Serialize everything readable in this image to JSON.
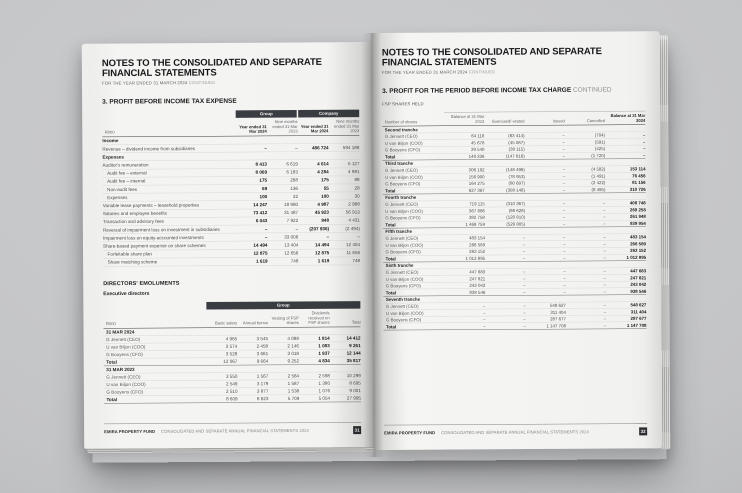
{
  "colors": {
    "band": "#393c41",
    "page_number_bg": "#2c2e31",
    "backdrop": "#c3c4c6"
  },
  "left_page": {
    "title": "NOTES TO THE CONSOLIDATED AND SEPARATE FINANCIAL STATEMENTS",
    "subtitle": "FOR THE YEAR ENDED 31 MARCH 2024 ",
    "subtitle_suffix": "CONTINUED",
    "section_title": "3. PROFIT BEFORE INCOME TAX EXPENSE",
    "main_table": {
      "unit_label": "R000",
      "groups": [
        "Group",
        "Company"
      ],
      "col_headers": [
        "Year ended 31 Mar 2024",
        "Nine months ended 31 Mar 2023",
        "Year ended 31 Mar 2024",
        "Nine months ended 31 Mar 2023"
      ],
      "rows": [
        {
          "label": "Income",
          "cls": "section",
          "values": []
        },
        {
          "label": "Revenue – dividend income from subsidiaries",
          "values": [
            "–",
            "–",
            "486 724",
            "594 188"
          ]
        },
        {
          "label": "Expenses",
          "cls": "section",
          "values": []
        },
        {
          "label": "Auditor's remuneration",
          "values": [
            "8 413",
            "6 619",
            "4 614",
            "5 127"
          ]
        },
        {
          "label": "Audit fee – external",
          "cls": "indent",
          "values": [
            "8 069",
            "6 183",
            "4 284",
            "4 981"
          ]
        },
        {
          "label": "Audit fee – internal",
          "cls": "indent",
          "values": [
            "175",
            "268",
            "175",
            "88"
          ]
        },
        {
          "label": "Non-audit fees",
          "cls": "indent",
          "values": [
            "69",
            "136",
            "55",
            "28"
          ]
        },
        {
          "label": "Expenses",
          "cls": "indent",
          "values": [
            "100",
            "32",
            "100",
            "30"
          ]
        },
        {
          "label": "Variable lease payments – leasehold properties",
          "values": [
            "14 247",
            "18 980",
            "4 987",
            "2 988"
          ]
        },
        {
          "label": "Salaries and employee benefits",
          "values": [
            "73 412",
            "31 487",
            "45 923",
            "56 913"
          ]
        },
        {
          "label": "Transaction and advisory fees",
          "values": [
            "6 043",
            "7 922",
            "848",
            "4 431"
          ]
        },
        {
          "label": "Reversal of impairment loss on investment in subsidiaries",
          "values": [
            "–",
            "–",
            "(207 936)",
            "(2 494)"
          ]
        },
        {
          "label": "Impairment loss on equity-accounted investments",
          "values": [
            "–",
            "33 006",
            "–",
            "–"
          ]
        },
        {
          "label": "Share-based payment expense on share schemes",
          "values": [
            "14 494",
            "13 404",
            "14 494",
            "12 404"
          ]
        },
        {
          "label": "Forfeitable share plan",
          "cls": "indent",
          "values": [
            "12 875",
            "12 656",
            "12 875",
            "11 656"
          ]
        },
        {
          "label": "Share matching scheme",
          "cls": "indent",
          "values": [
            "1 619",
            "748",
            "1 619",
            "748"
          ]
        }
      ]
    },
    "emoluments": {
      "title": "DIRECTORS' EMOLUMENTS",
      "subtitle": "Executive directors",
      "unit_label": "R000",
      "group_header": "Group",
      "col_headers": [
        "Basic salary",
        "Annual bonus",
        "Vesting of FSP shares",
        "Dividends received on FSP shares",
        "Total"
      ],
      "rows": [
        {
          "label": "31 MAR 2024",
          "cls": "section",
          "values": []
        },
        {
          "label": "G Jennett (CEO)",
          "cls": "name b45",
          "values": [
            "4 965",
            "3 545",
            "4 088",
            "1 814",
            "14 412"
          ]
        },
        {
          "label": "U van Biljon (COO)",
          "cls": "name b45",
          "values": [
            "3 574",
            "2 458",
            "2 146",
            "1 083",
            "9 261"
          ]
        },
        {
          "label": "G Booyens (CFO)",
          "cls": "name b45",
          "values": [
            "3 528",
            "3 661",
            "3 018",
            "1 937",
            "12 144"
          ]
        },
        {
          "label": "Total",
          "cls": "total b45",
          "values": [
            "12 067",
            "9 664",
            "9 252",
            "4 834",
            "35 817"
          ]
        },
        {
          "label": "31 MAR 2023",
          "cls": "section gap",
          "values": []
        },
        {
          "label": "G Jennett (CEO)",
          "cls": "name",
          "values": [
            "3 550",
            "1 567",
            "2 584",
            "2 598",
            "10 299"
          ]
        },
        {
          "label": "U van Biljon (COO)",
          "cls": "name",
          "values": [
            "2 549",
            "3 179",
            "1 587",
            "1 380",
            "8 695"
          ]
        },
        {
          "label": "G Booyens (CFO)",
          "cls": "name",
          "values": [
            "2 510",
            "3 877",
            "1 538",
            "1 076",
            "9 001"
          ]
        },
        {
          "label": "Total",
          "cls": "total",
          "values": [
            "8 609",
            "8 623",
            "5 709",
            "5 054",
            "27 995"
          ]
        }
      ]
    },
    "footer": {
      "brand": "EMIRA PROPERTY FUND",
      "text": "CONSOLIDATED AND SEPARATE ANNUAL FINANCIAL STATEMENTS 2024",
      "page_number": "31"
    }
  },
  "right_page": {
    "title": "NOTES TO THE CONSOLIDATED AND SEPARATE FINANCIAL STATEMENTS",
    "subtitle": "FOR THE YEAR ENDED 31 MARCH 2024 ",
    "subtitle_suffix": "CONTINUED",
    "section_title": "3. PROFIT FOR THE PERIOD BEFORE INCOME TAX CHARGE ",
    "section_title_suffix": "CONTINUED",
    "table_label": "FSP SHARES HELD",
    "shares_table": {
      "unit_label": "Number of shares",
      "col_headers": [
        "Balance at 31 Mar 2023",
        "Exercised/ vested",
        "Issued",
        "Cancelled",
        "Balance at 31 Mar 2024"
      ],
      "rows": [
        {
          "label": "Second tranche",
          "cls": "tranche",
          "values": []
        },
        {
          "label": "G Jennett (CEO)",
          "cls": "name",
          "values": [
            "64 118",
            "(63 414)",
            "–",
            "(704)",
            "–"
          ]
        },
        {
          "label": "U van Biljon (COO)",
          "cls": "name",
          "values": [
            "45 678",
            "(45 087)",
            "–",
            "(591)",
            "–"
          ]
        },
        {
          "label": "G Booyens (CFO)",
          "cls": "name",
          "values": [
            "39 540",
            "(39 115)",
            "–",
            "(425)",
            "–"
          ]
        },
        {
          "label": "Total",
          "cls": "total",
          "values": [
            "149 336",
            "(147 616)",
            "–",
            "(1 720)",
            "–"
          ]
        },
        {
          "label": "Third tranche",
          "cls": "tranche gap",
          "values": []
        },
        {
          "label": "G Jennett (CEO)",
          "cls": "name",
          "values": [
            "306 192",
            "(148 496)",
            "–",
            "(4 582)",
            "153 114"
          ]
        },
        {
          "label": "U van Biljon (COO)",
          "cls": "name",
          "values": [
            "156 900",
            "(78 953)",
            "–",
            "(1 491)",
            "76 456"
          ]
        },
        {
          "label": "G Booyens (CFO)",
          "cls": "name",
          "values": [
            "164 275",
            "(80 697)",
            "–",
            "(2 422)",
            "81 156"
          ]
        },
        {
          "label": "Total",
          "cls": "total",
          "values": [
            "627 367",
            "(308 146)",
            "–",
            "(8 495)",
            "310 726"
          ]
        },
        {
          "label": "Fourth tranche",
          "cls": "tranche gap",
          "values": []
        },
        {
          "label": "G Jennett (CEO)",
          "cls": "name",
          "values": [
            "719 115",
            "(310 367)",
            "–",
            "–",
            "408 748"
          ]
        },
        {
          "label": "U van Biljon (COO)",
          "cls": "name",
          "values": [
            "367 886",
            "(98 628)",
            "–",
            "–",
            "269 258"
          ]
        },
        {
          "label": "G Booyens (CFO)",
          "cls": "name",
          "values": [
            "382 758",
            "(120 810)",
            "–",
            "–",
            "261 948"
          ]
        },
        {
          "label": "Total",
          "cls": "total",
          "values": [
            "1 469 759",
            "(529 805)",
            "–",
            "–",
            "939 954"
          ]
        },
        {
          "label": "Fifth tranche",
          "cls": "tranche gap",
          "values": []
        },
        {
          "label": "G Jennett (CEO)",
          "cls": "name",
          "values": [
            "483 154",
            "–",
            "–",
            "–",
            "483 154"
          ]
        },
        {
          "label": "U van Biljon (COO)",
          "cls": "name",
          "values": [
            "266 589",
            "–",
            "–",
            "–",
            "266 589"
          ]
        },
        {
          "label": "G Booyens (CFO)",
          "cls": "name",
          "values": [
            "263 152",
            "–",
            "–",
            "–",
            "263 152"
          ]
        },
        {
          "label": "Total",
          "cls": "total",
          "values": [
            "1 012 895",
            "–",
            "–",
            "–",
            "1 012 895"
          ]
        },
        {
          "label": "Sixth tranche",
          "cls": "tranche gap",
          "values": []
        },
        {
          "label": "G Jennett (CEO)",
          "cls": "name",
          "values": [
            "447 683",
            "–",
            "–",
            "–",
            "447 683"
          ]
        },
        {
          "label": "U van Biljon (COO)",
          "cls": "name",
          "values": [
            "247 821",
            "–",
            "–",
            "–",
            "247 821"
          ]
        },
        {
          "label": "G Booyens (CFO)",
          "cls": "name",
          "values": [
            "243 042",
            "–",
            "–",
            "–",
            "243 042"
          ]
        },
        {
          "label": "Total",
          "cls": "total",
          "values": [
            "938 546",
            "–",
            "–",
            "–",
            "938 546"
          ]
        },
        {
          "label": "Seventh tranche",
          "cls": "tranche gap",
          "values": []
        },
        {
          "label": "G Jennett (CEO)",
          "cls": "name",
          "values": [
            "–",
            "–",
            "548 627",
            "–",
            "548 627"
          ]
        },
        {
          "label": "U van Biljon (COO)",
          "cls": "name",
          "values": [
            "–",
            "–",
            "311 404",
            "–",
            "311 404"
          ]
        },
        {
          "label": "G Booyens (CFO)",
          "cls": "name",
          "values": [
            "–",
            "–",
            "287 677",
            "–",
            "287 677"
          ]
        },
        {
          "label": "Total",
          "cls": "total",
          "values": [
            "–",
            "–",
            "1 147 708",
            "–",
            "1 147 708"
          ]
        }
      ]
    },
    "footer": {
      "brand": "EMIRA PROPERTY FUND",
      "text": "CONSOLIDATED AND SEPARATE ANNUAL FINANCIAL STATEMENTS 2024",
      "page_number": "32"
    }
  }
}
